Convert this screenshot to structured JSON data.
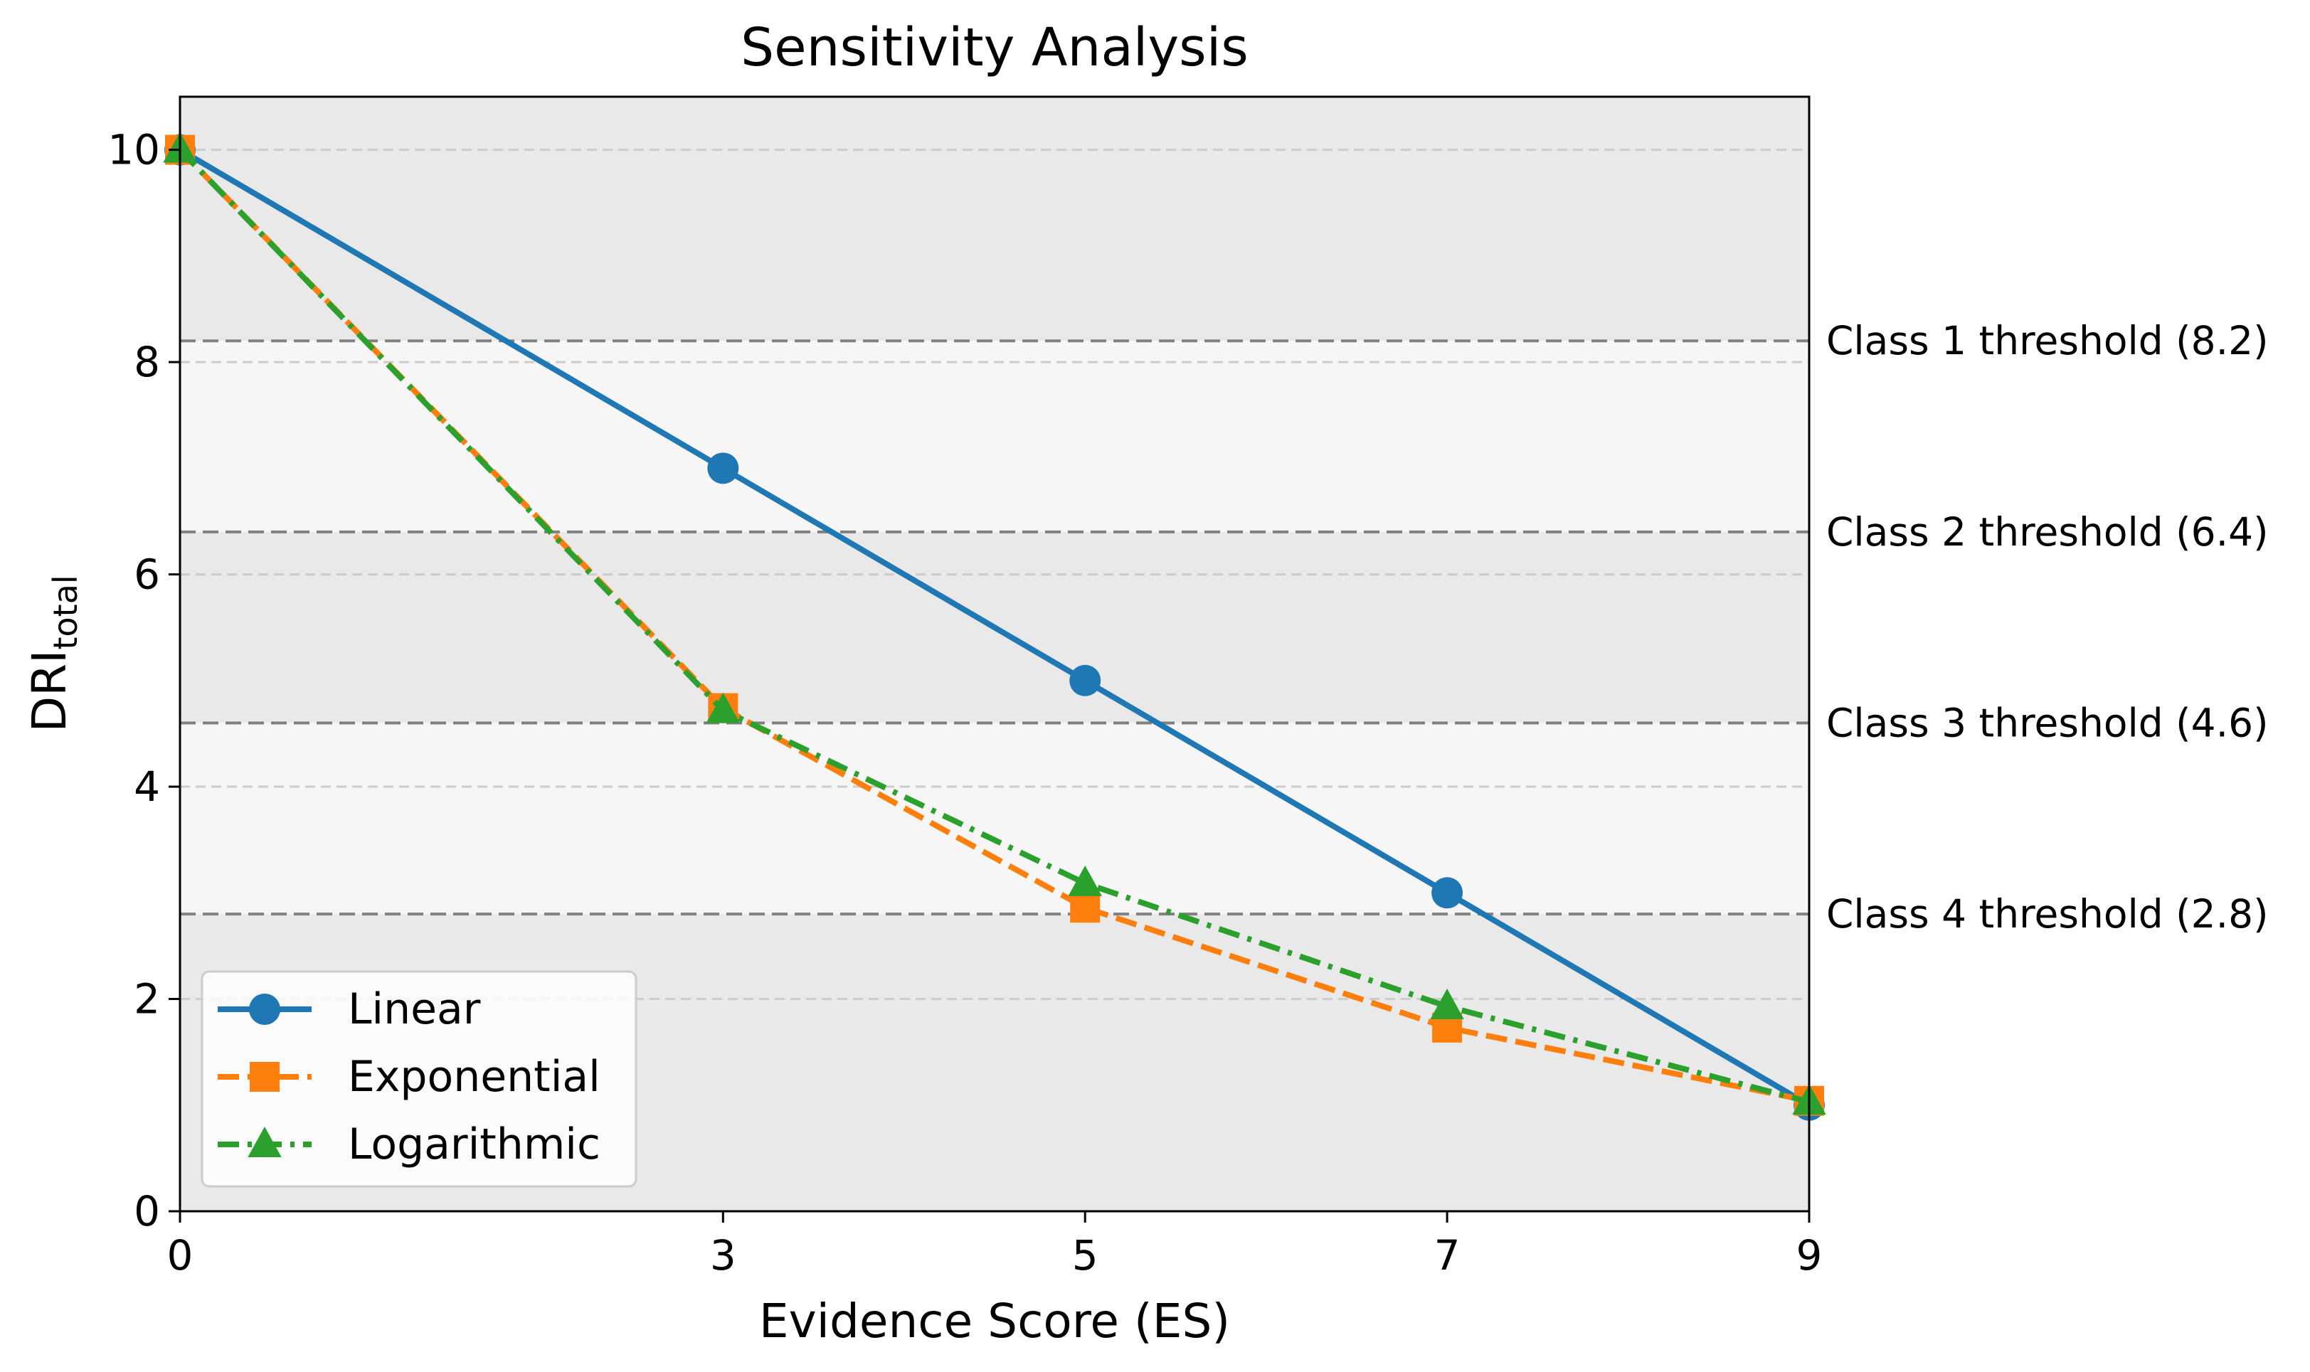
{
  "chart_data": {
    "type": "line",
    "title": "Sensitivity Analysis",
    "xlabel": "Evidence Score (ES)",
    "ylabel": {
      "base": "DRI",
      "subscript": "total"
    },
    "xlim": [
      0,
      9
    ],
    "ylim": [
      0,
      10.5
    ],
    "xticks": [
      0,
      3,
      5,
      7,
      9
    ],
    "yticks": [
      0,
      2,
      4,
      6,
      8,
      10
    ],
    "grid_y": [
      2,
      4,
      6,
      8,
      10
    ],
    "x": [
      0,
      3,
      5,
      7,
      9
    ],
    "series": [
      {
        "name": "Linear",
        "values": [
          10,
          7,
          5,
          3,
          1
        ],
        "color": "#1f77b4",
        "marker": "circle",
        "linestyle": "solid"
      },
      {
        "name": "Exponential",
        "values": [
          10,
          4.74,
          2.86,
          1.73,
          1.04
        ],
        "color": "#ff7f0e",
        "marker": "square",
        "linestyle": "dashed"
      },
      {
        "name": "Logarithmic",
        "values": [
          10,
          4.72,
          3.09,
          1.93,
          1.03
        ],
        "color": "#2ca02c",
        "marker": "triangle",
        "linestyle": "dashdot"
      }
    ],
    "thresholds": [
      {
        "value": 8.2,
        "label": "Class 1 threshold (8.2)"
      },
      {
        "value": 6.4,
        "label": "Class 2 threshold (6.4)"
      },
      {
        "value": 4.6,
        "label": "Class 3 threshold (4.6)"
      },
      {
        "value": 2.8,
        "label": "Class 4 threshold (2.8)"
      }
    ],
    "bands": [
      {
        "from": 0,
        "to": 2.8,
        "color": "#e9e9e9"
      },
      {
        "from": 2.8,
        "to": 4.6,
        "color": "#f6f6f6"
      },
      {
        "from": 4.6,
        "to": 6.4,
        "color": "#e9e9e9"
      },
      {
        "from": 6.4,
        "to": 8.2,
        "color": "#f6f6f6"
      },
      {
        "from": 8.2,
        "to": 10.5,
        "color": "#e9e9e9"
      }
    ],
    "legend_position": "lower-left"
  }
}
